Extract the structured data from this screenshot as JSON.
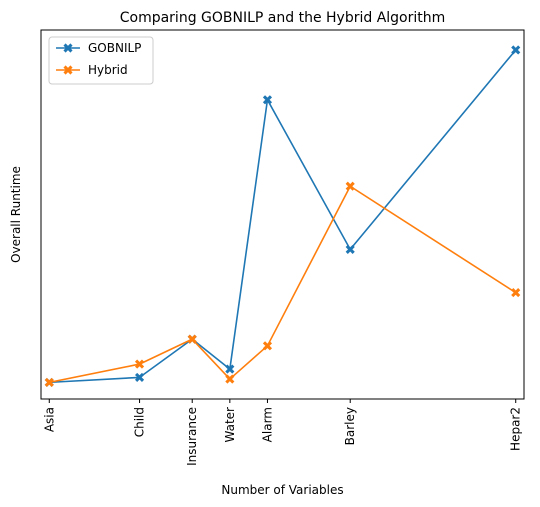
{
  "chart_data": {
    "type": "line",
    "title": "Comparing GOBNILP and the Hybrid Algorithm",
    "xlabel": "Number of Variables",
    "ylabel": "Overall Runtime",
    "y_tick_labels_shown": false,
    "grid": false,
    "legend_position": "upper-left",
    "x": [
      8,
      20,
      27,
      32,
      37,
      48,
      70
    ],
    "x_tick_labels": [
      "Asia",
      "Child",
      "Insurance",
      "Water",
      "Alarm",
      "Barley",
      "Hepar2"
    ],
    "xlim": [
      6.9,
      71.1
    ],
    "ylim": [
      -0.05,
      1.06
    ],
    "series": [
      {
        "name": "GOBNILP",
        "color": "#1f77b4",
        "marker": "X",
        "values": [
          0.0,
          0.015,
          0.13,
          0.04,
          0.85,
          0.4,
          1.0
        ]
      },
      {
        "name": "Hybrid",
        "color": "#ff7f0e",
        "marker": "X",
        "values": [
          0.0,
          0.055,
          0.13,
          0.01,
          0.11,
          0.59,
          0.27
        ]
      }
    ]
  }
}
